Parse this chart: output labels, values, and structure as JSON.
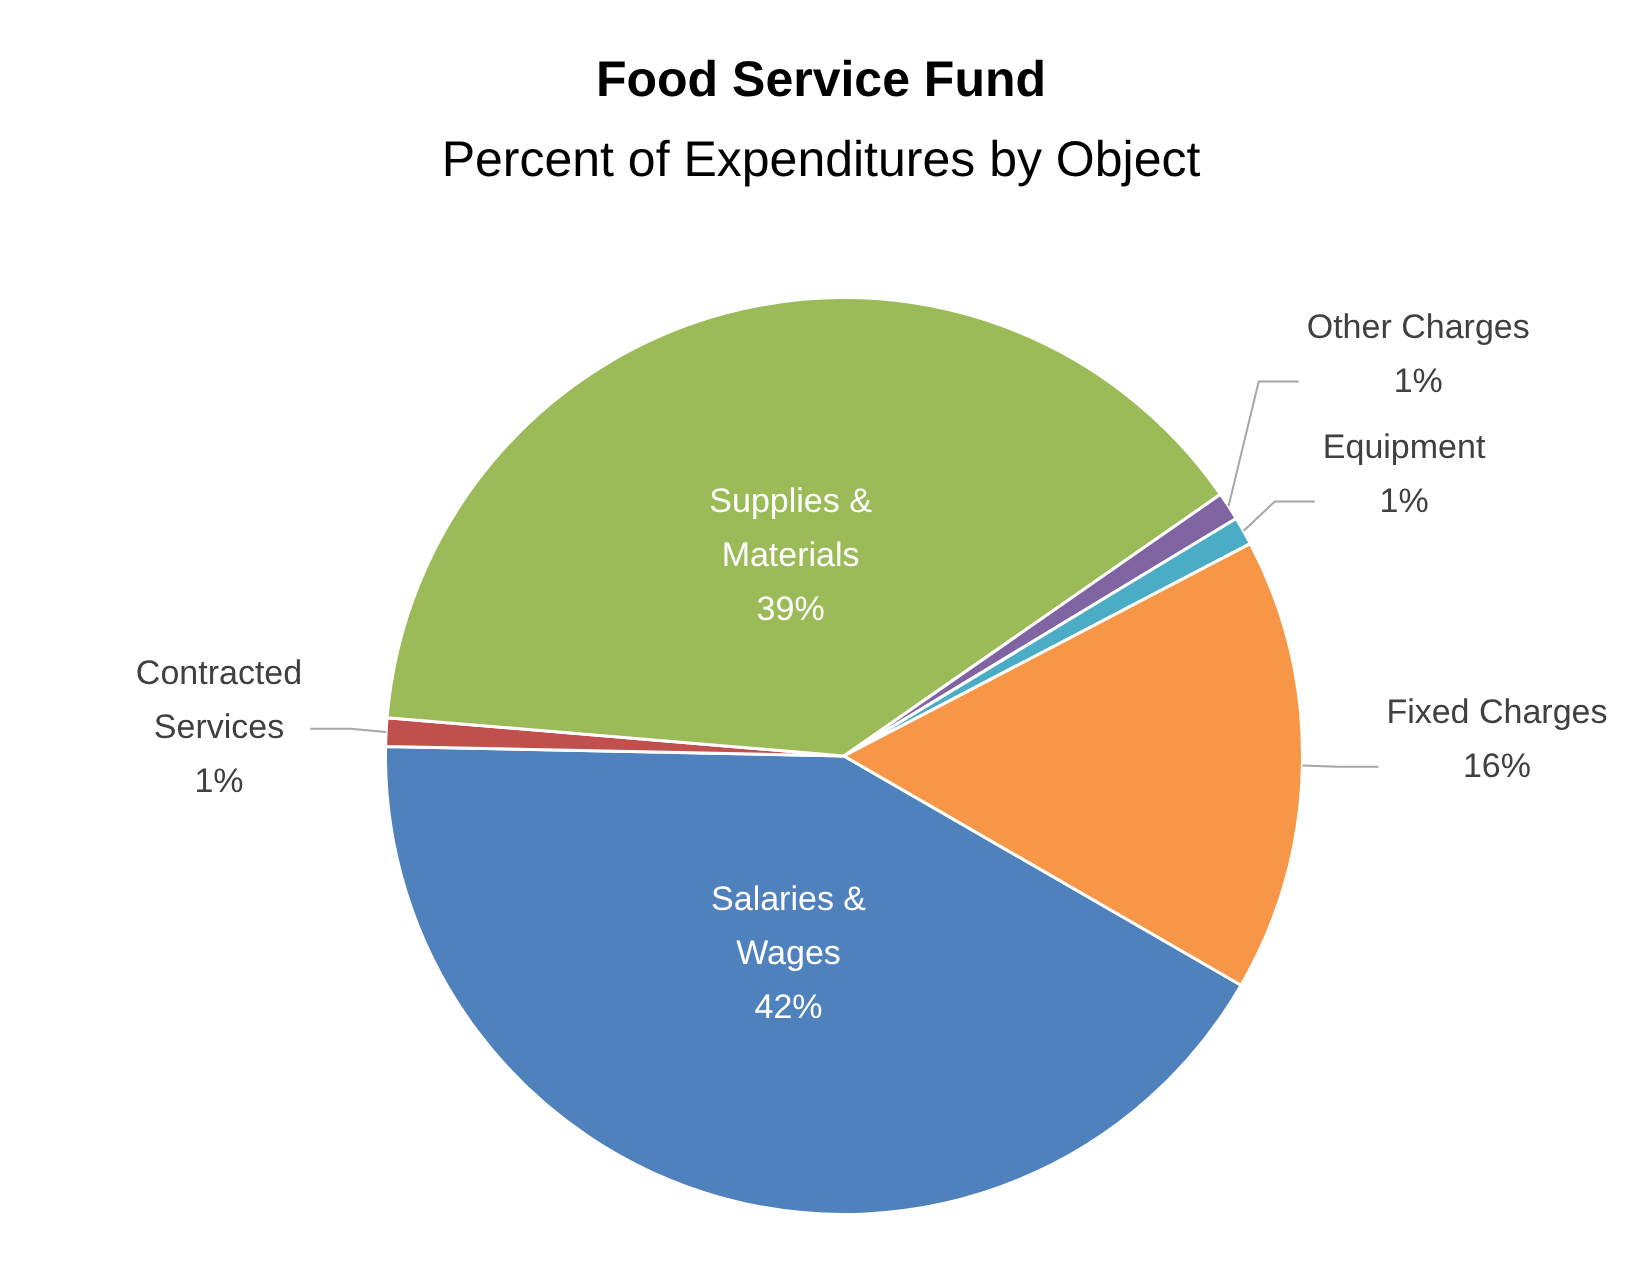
{
  "chart_data": {
    "type": "pie",
    "title": "Food Service Fund",
    "subtitle": "Percent of Expenditures by Object",
    "categories": [
      "Salaries & Wages",
      "Contracted Services",
      "Supplies & Materials",
      "Other Charges",
      "Equipment",
      "Fixed Charges"
    ],
    "values": [
      42,
      1,
      39,
      1,
      1,
      16
    ],
    "colors": [
      "#4f81bd",
      "#c0504d",
      "#9bbb59",
      "#8064a2",
      "#4bacc6",
      "#f79646"
    ],
    "value_labels": [
      "42%",
      "1%",
      "39%",
      "1%",
      "1%",
      "16%"
    ],
    "legend": false
  }
}
